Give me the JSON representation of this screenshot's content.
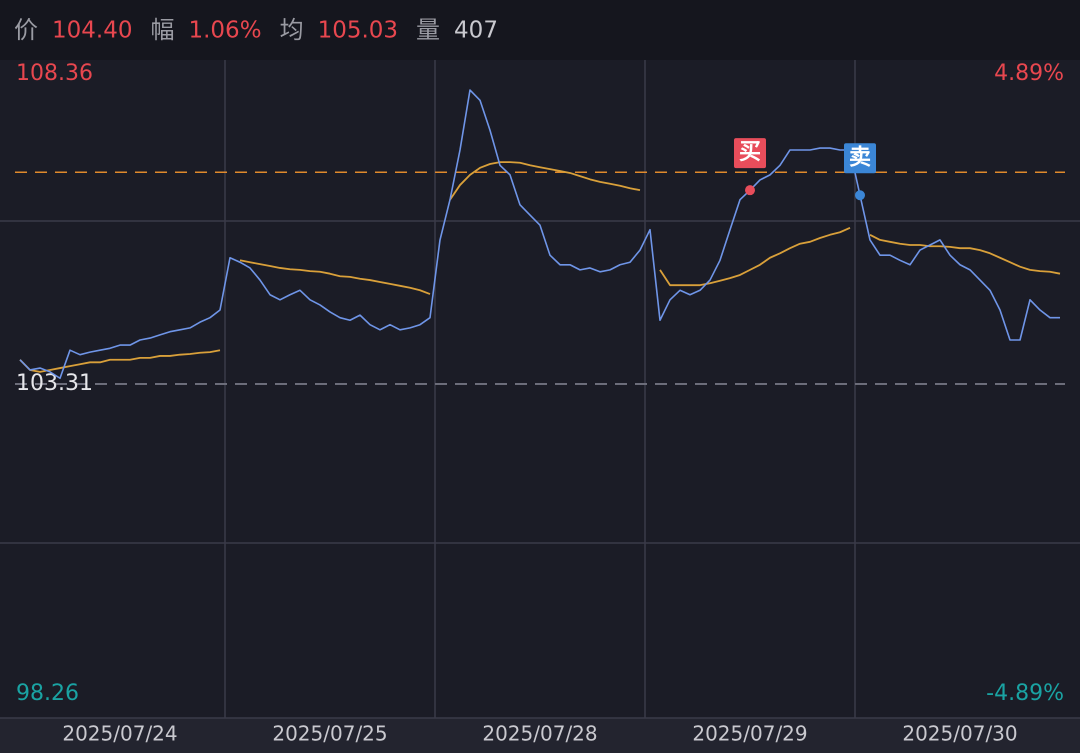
{
  "header": [
    {
      "label": "价",
      "value": "104.40",
      "color": "#e8474f"
    },
    {
      "label": "幅",
      "value": "1.06%",
      "color": "#e8474f"
    },
    {
      "label": "均",
      "value": "105.03",
      "color": "#e8474f"
    },
    {
      "label": "量",
      "value": "407",
      "color": "#c9c9cf"
    }
  ],
  "chart_data": {
    "type": "line",
    "categories": [
      null,
      null,
      null,
      null,
      null,
      null,
      null,
      null,
      null,
      null,
      "2025/07/24",
      null,
      null,
      null,
      null,
      null,
      null,
      null,
      null,
      null,
      null,
      null,
      null,
      null,
      null,
      null,
      null,
      null,
      null,
      null,
      null,
      "2025/07/25",
      null,
      null,
      null,
      null,
      null,
      null,
      null,
      null,
      null,
      null,
      null,
      null,
      null,
      null,
      null,
      null,
      null,
      null,
      null,
      null,
      "2025/07/28",
      null,
      null,
      null,
      null,
      null,
      null,
      null,
      null,
      null,
      null,
      null,
      null,
      null,
      null,
      null,
      null,
      null,
      null,
      null,
      null,
      "2025/07/29",
      null,
      null,
      null,
      null,
      null,
      null,
      null,
      null,
      null,
      null,
      null,
      null,
      null,
      null,
      null,
      null,
      null,
      null,
      null,
      null,
      "2025/07/30",
      null,
      null,
      null,
      null,
      null,
      null,
      null,
      null,
      null,
      null
    ],
    "series": [
      {
        "color": "#6f95e8",
        "values": [
          103.69,
          103.53,
          103.56,
          103.5,
          103.4,
          103.84,
          103.77,
          103.81,
          103.84,
          103.87,
          103.92,
          103.92,
          104.0,
          104.03,
          104.08,
          104.13,
          104.16,
          104.19,
          104.28,
          104.35,
          104.47,
          105.29,
          105.22,
          105.13,
          104.94,
          104.71,
          104.63,
          104.71,
          104.78,
          104.63,
          104.55,
          104.44,
          104.35,
          104.31,
          104.39,
          104.24,
          104.16,
          104.24,
          104.16,
          104.19,
          104.24,
          104.35,
          105.57,
          106.2,
          106.98,
          107.92,
          107.76,
          107.29,
          106.74,
          106.59,
          106.12,
          105.96,
          105.8,
          105.33,
          105.18,
          105.18,
          105.1,
          105.13,
          105.07,
          105.1,
          105.18,
          105.22,
          105.41,
          105.73,
          104.31,
          104.63,
          104.78,
          104.71,
          104.78,
          104.94,
          105.25,
          105.73,
          106.2,
          106.35,
          106.51,
          106.59,
          106.74,
          106.98,
          106.98,
          106.98,
          107.01,
          107.01,
          106.98,
          106.98,
          106.27,
          105.57,
          105.33,
          105.33,
          105.25,
          105.18,
          105.41,
          105.49,
          105.57,
          105.33,
          105.18,
          105.1,
          104.94,
          104.78,
          104.47,
          104.0,
          104.0,
          104.63,
          104.47,
          104.35,
          104.35
        ]
      },
      {
        "color": "#d9a03a",
        "values": [
          103.69,
          103.53,
          103.5,
          103.53,
          103.56,
          103.59,
          103.62,
          103.65,
          103.65,
          103.69,
          103.69,
          103.69,
          103.72,
          103.72,
          103.75,
          103.75,
          103.77,
          103.78,
          103.8,
          103.81,
          103.84,
          null,
          105.25,
          105.22,
          105.19,
          105.16,
          105.13,
          105.11,
          105.1,
          105.08,
          105.07,
          105.04,
          105.0,
          104.99,
          104.96,
          104.94,
          104.91,
          104.88,
          104.85,
          104.82,
          104.78,
          104.72,
          null,
          106.2,
          106.43,
          106.59,
          106.7,
          106.76,
          106.79,
          106.79,
          106.78,
          106.74,
          106.71,
          106.68,
          106.65,
          106.62,
          106.57,
          106.52,
          106.48,
          106.45,
          106.42,
          106.38,
          106.35,
          null,
          105.1,
          104.86,
          104.86,
          104.86,
          104.86,
          104.89,
          104.93,
          104.97,
          105.02,
          105.1,
          105.18,
          105.29,
          105.36,
          105.44,
          105.51,
          105.54,
          105.6,
          105.65,
          105.69,
          105.76,
          null,
          105.65,
          105.57,
          105.54,
          105.51,
          105.49,
          105.49,
          105.47,
          105.47,
          105.46,
          105.44,
          105.44,
          105.41,
          105.36,
          105.29,
          105.22,
          105.15,
          105.1,
          105.08,
          105.07,
          105.04
        ]
      }
    ],
    "ylim": [
      98.26,
      108.36
    ],
    "yticks": [
      108.36,
      103.31,
      98.26
    ],
    "y2lim": [
      -4.89,
      4.89
    ],
    "y2ticks": [
      {
        "value": 4.89,
        "label": "4.89%"
      },
      {
        "value": -4.89,
        "label": "-4.89%"
      }
    ],
    "baseline": 103.31,
    "ref_line": {
      "value": 106.63,
      "color": "#e08a2c"
    },
    "annotations": [
      {
        "label": "买",
        "index": 73,
        "color": "#e84d5b"
      },
      {
        "label": "卖",
        "index": 84,
        "color": "#3b86d6"
      }
    ],
    "up_color": "#e8474f",
    "down_color": "#1aa3a3"
  }
}
